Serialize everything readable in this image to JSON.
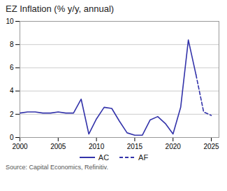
{
  "chart_data": {
    "type": "line",
    "title": "EZ Inflation (% y/y, annual)",
    "source": "Source: Capital Economics, Refinitiv.",
    "series": [
      {
        "name": "AC",
        "color": "#3333aa",
        "line_style": "solid",
        "x": [
          2000,
          2001,
          2002,
          2003,
          2004,
          2005,
          2006,
          2007,
          2008,
          2009,
          2010,
          2011,
          2012,
          2013,
          2014,
          2015,
          2016,
          2017,
          2018,
          2019,
          2020,
          2021,
          2022,
          2023
        ],
        "values": [
          2.1,
          2.2,
          2.2,
          2.1,
          2.1,
          2.2,
          2.1,
          2.1,
          3.3,
          0.3,
          1.6,
          2.6,
          2.5,
          1.4,
          0.4,
          0.2,
          0.2,
          1.5,
          1.8,
          1.2,
          0.3,
          2.6,
          8.4,
          5.4
        ]
      },
      {
        "name": "AF",
        "color": "#3333aa",
        "line_style": "dashed",
        "x": [
          2023,
          2024,
          2025
        ],
        "values": [
          5.4,
          2.2,
          1.9
        ]
      }
    ],
    "xlim": [
      2000,
      2026
    ],
    "xticks": [
      2000,
      2005,
      2010,
      2015,
      2020,
      2025
    ],
    "ylim": [
      0,
      10
    ],
    "yticks": [
      0,
      2,
      4,
      6,
      8,
      10
    ],
    "grid": "y",
    "legend": "bottom"
  }
}
